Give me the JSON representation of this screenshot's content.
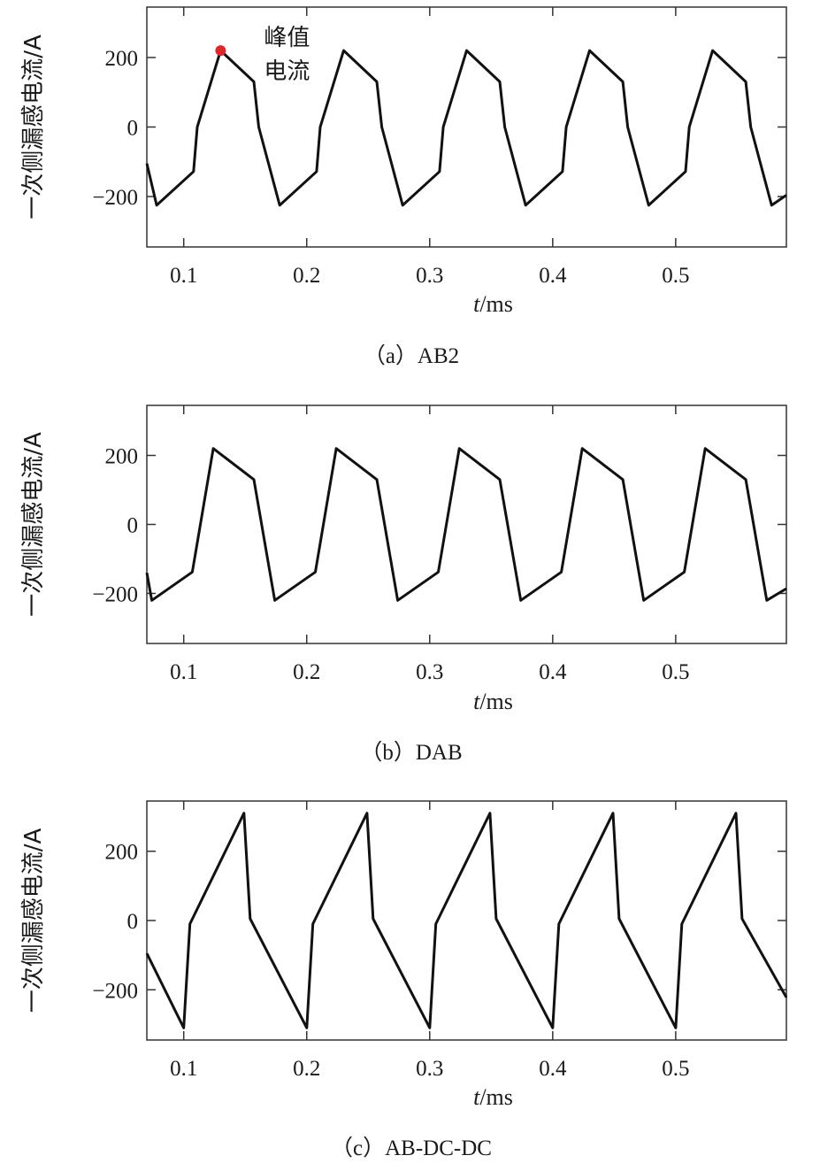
{
  "chart_data": [
    {
      "type": "line",
      "caption": "（a）AB2",
      "xlabel_italic": "t",
      "xlabel_unit": "/ms",
      "ylabel": "一次侧漏感电流/A",
      "xlim": [
        0.07,
        0.59
      ],
      "ylim": [
        -345,
        345
      ],
      "xticks": [
        0.1,
        0.2,
        0.3,
        0.4,
        0.5
      ],
      "xtick_labels": [
        "0.1",
        "0.2",
        "0.3",
        "0.4",
        "0.5"
      ],
      "yticks": [
        200,
        0,
        -200
      ],
      "ytick_labels": [
        "200",
        "0",
        "−200"
      ],
      "annotation": {
        "text_line1": "峰值",
        "text_line2": "电流",
        "x": 0.13,
        "y": 220,
        "marker_color": "#e0262b"
      },
      "series": [
        {
          "name": "AB2",
          "x": [
            0.07,
            0.078,
            0.108,
            0.111,
            0.13,
            0.157,
            0.161,
            0.178,
            0.208,
            0.211,
            0.23,
            0.257,
            0.261,
            0.278,
            0.308,
            0.311,
            0.33,
            0.357,
            0.361,
            0.378,
            0.408,
            0.411,
            0.43,
            0.457,
            0.461,
            0.478,
            0.508,
            0.511,
            0.53,
            0.557,
            0.561,
            0.578,
            0.59
          ],
          "y": [
            -105,
            -225,
            -128,
            0,
            220,
            130,
            0,
            -225,
            -128,
            0,
            220,
            130,
            0,
            -225,
            -128,
            0,
            220,
            130,
            0,
            -225,
            -128,
            0,
            220,
            130,
            0,
            -225,
            -128,
            0,
            220,
            130,
            0,
            -225,
            -196
          ]
        }
      ]
    },
    {
      "type": "line",
      "caption": "（b）DAB",
      "xlabel_italic": "t",
      "xlabel_unit": "/ms",
      "ylabel": "一次侧漏感电流/A",
      "xlim": [
        0.07,
        0.59
      ],
      "ylim": [
        -345,
        345
      ],
      "xticks": [
        0.1,
        0.2,
        0.3,
        0.4,
        0.5
      ],
      "xtick_labels": [
        "0.1",
        "0.2",
        "0.3",
        "0.4",
        "0.5"
      ],
      "yticks": [
        200,
        0,
        -200
      ],
      "ytick_labels": [
        "200",
        "0",
        "−200"
      ],
      "series": [
        {
          "name": "DAB",
          "x": [
            0.07,
            0.074,
            0.107,
            0.124,
            0.157,
            0.174,
            0.207,
            0.224,
            0.257,
            0.274,
            0.307,
            0.324,
            0.357,
            0.374,
            0.407,
            0.424,
            0.457,
            0.474,
            0.507,
            0.524,
            0.557,
            0.574,
            0.59
          ],
          "y": [
            -140,
            -220,
            -138,
            220,
            130,
            -220,
            -138,
            220,
            130,
            -220,
            -138,
            220,
            130,
            -220,
            -138,
            220,
            130,
            -220,
            -138,
            220,
            130,
            -220,
            -186
          ]
        }
      ]
    },
    {
      "type": "line",
      "caption": "（c）AB-DC-DC",
      "xlabel_italic": "t",
      "xlabel_unit": "/ms",
      "ylabel": "一次侧漏感电流/A",
      "xlim": [
        0.07,
        0.59
      ],
      "ylim": [
        -345,
        345
      ],
      "xticks": [
        0.1,
        0.2,
        0.3,
        0.4,
        0.5
      ],
      "xtick_labels": [
        "0.1",
        "0.2",
        "0.3",
        "0.4",
        "0.5"
      ],
      "yticks": [
        200,
        0,
        -200
      ],
      "ytick_labels": [
        "200",
        "0",
        "−200"
      ],
      "series": [
        {
          "name": "AB-DC-DC",
          "x": [
            0.07,
            0.1,
            0.105,
            0.149,
            0.154,
            0.2,
            0.205,
            0.249,
            0.254,
            0.3,
            0.305,
            0.349,
            0.354,
            0.4,
            0.405,
            0.449,
            0.454,
            0.5,
            0.505,
            0.549,
            0.554,
            0.59
          ],
          "y": [
            -95,
            -310,
            -10,
            310,
            5,
            -310,
            -10,
            310,
            5,
            -310,
            -10,
            310,
            5,
            -310,
            -10,
            310,
            5,
            -310,
            -10,
            310,
            5,
            -222
          ]
        }
      ]
    }
  ]
}
